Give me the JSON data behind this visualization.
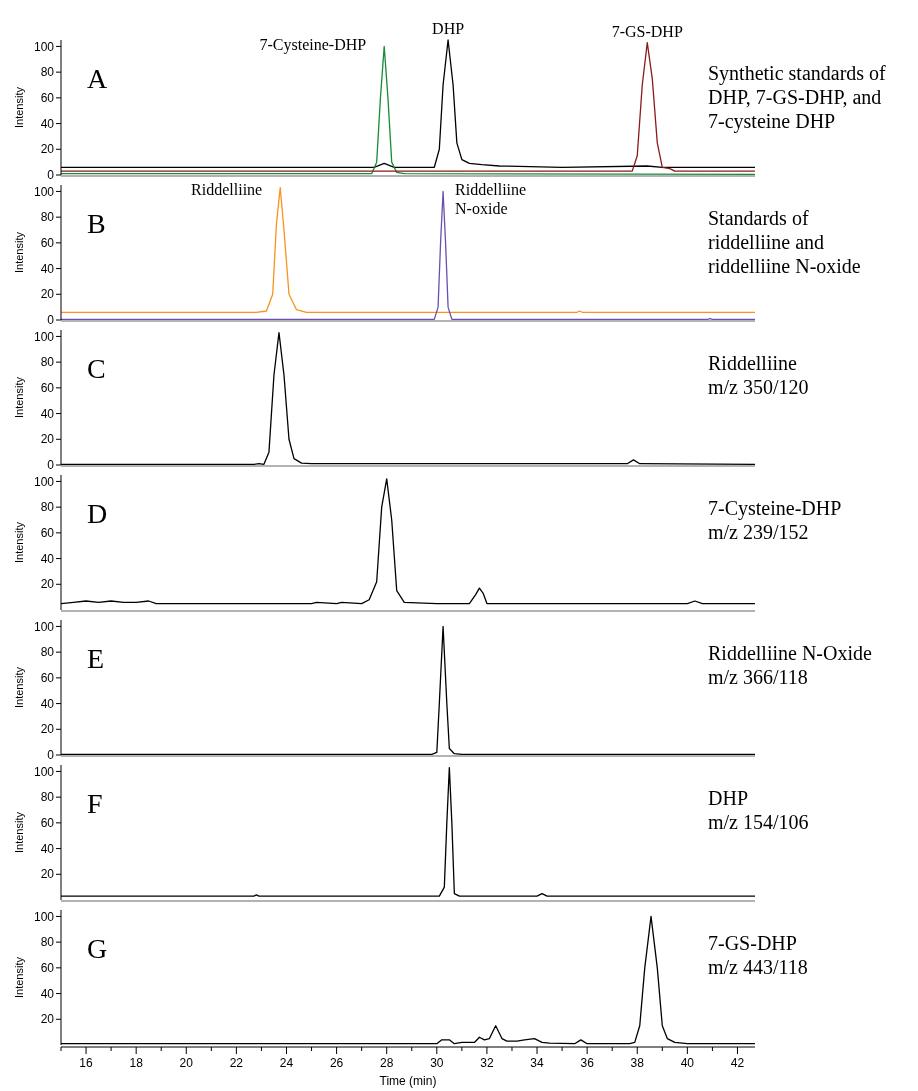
{
  "chart_data": [
    {
      "type": "line",
      "ylabel": "Intensity",
      "xlim": [
        15,
        42.7
      ],
      "ylim": [
        0,
        105
      ],
      "yticks": [
        0,
        20,
        40,
        60,
        80,
        100
      ],
      "tick_labels": "y",
      "series": [
        {
          "color": "#000000",
          "x": [
            15,
            20,
            25,
            27.5,
            27.9,
            28.3,
            29,
            29.9,
            30.1,
            30.25,
            30.45,
            30.65,
            30.8,
            31,
            31.3,
            31.8,
            32.5,
            35,
            38.4,
            39,
            42.7
          ],
          "values": [
            6,
            6,
            6,
            6,
            9,
            6,
            6,
            6,
            20,
            70,
            105,
            70,
            25,
            12,
            9,
            8,
            7,
            6,
            7,
            6,
            6
          ]
        },
        {
          "color": "#1a8a3a",
          "x": [
            15,
            27.4,
            27.6,
            27.75,
            27.9,
            28.05,
            28.2,
            28.4,
            28.7,
            42.7
          ],
          "values": [
            1,
            1,
            10,
            60,
            100,
            60,
            10,
            2,
            1,
            0.5
          ]
        },
        {
          "color": "#8b1a1a",
          "x": [
            15,
            37.8,
            38.0,
            38.2,
            38.4,
            38.6,
            38.8,
            39.0,
            39.3,
            39.5,
            42.7
          ],
          "values": [
            3,
            3,
            15,
            70,
            103,
            75,
            25,
            6,
            5,
            3,
            3
          ]
        }
      ],
      "annotations": [
        "A",
        "Synthetic standards of\nDHP, 7-GS-DHP, and\n7-cysteine DHP",
        {
          "text": "7-Cysteine-DHP",
          "x": 27.9,
          "y": 100
        },
        {
          "text": "DHP",
          "x": 30.45,
          "y": 105
        },
        {
          "text": "7-GS-DHP",
          "x": 38.4,
          "y": 103
        }
      ]
    },
    {
      "type": "line",
      "ylabel": "Intensity",
      "xlim": [
        15,
        42.7
      ],
      "ylim": [
        0,
        105
      ],
      "yticks": [
        0,
        20,
        40,
        60,
        80,
        100
      ],
      "tick_labels": "y",
      "series": [
        {
          "color": "#f7941d",
          "x": [
            15,
            22.8,
            23.2,
            23.45,
            23.6,
            23.75,
            23.9,
            24.1,
            24.4,
            24.8,
            35.6,
            35.7,
            35.8,
            42.7
          ],
          "values": [
            6,
            6,
            7,
            20,
            75,
            103,
            70,
            20,
            8,
            6,
            6,
            7,
            6,
            6
          ]
        },
        {
          "color": "#6a4fb0",
          "x": [
            15,
            29.9,
            30.05,
            30.15,
            30.25,
            30.35,
            30.45,
            30.6,
            40.8,
            40.9,
            41,
            42.7
          ],
          "values": [
            0.5,
            0.5,
            10,
            60,
            100,
            60,
            10,
            0.5,
            0.5,
            1,
            0.5,
            0.5
          ]
        }
      ],
      "annotations": [
        "B",
        "Standards of\nriddelliine and\nriddelliine N-oxide",
        {
          "text": "Riddelliine",
          "x": 23.75,
          "y": 100
        },
        {
          "text": "Riddelliine\nN-oxide",
          "x": 30.25,
          "y": 100
        }
      ]
    },
    {
      "type": "line",
      "ylabel": "Intensity",
      "xlim": [
        15,
        42.7
      ],
      "ylim": [
        0,
        105
      ],
      "yticks": [
        0,
        20,
        40,
        60,
        80,
        100
      ],
      "tick_labels": "y",
      "series": [
        {
          "color": "#000000",
          "x": [
            15,
            22.7,
            22.9,
            23.1,
            23.3,
            23.5,
            23.7,
            23.9,
            24.1,
            24.3,
            24.6,
            25,
            37.6,
            37.85,
            38.1,
            42.7
          ],
          "values": [
            0.5,
            0.5,
            1,
            0.5,
            10,
            70,
            103,
            70,
            20,
            5,
            1.5,
            1,
            1,
            4,
            1,
            0.5
          ]
        }
      ],
      "annotations": [
        "C",
        "Riddelliine\nm/z 350/120"
      ]
    },
    {
      "type": "line",
      "ylabel": "Intensity",
      "xlim": [
        15,
        42.7
      ],
      "ylim": [
        0,
        105
      ],
      "yticks": [
        20,
        40,
        60,
        80,
        100
      ],
      "tick_labels": "y",
      "series": [
        {
          "color": "#000000",
          "x": [
            15,
            15.5,
            16,
            16.5,
            17,
            17.5,
            18,
            18.5,
            18.8,
            19.5,
            22,
            25,
            25.2,
            26,
            26.2,
            27,
            27.3,
            27.6,
            27.8,
            28.0,
            28.2,
            28.4,
            28.7,
            30,
            31.3,
            31.55,
            31.7,
            31.85,
            32,
            33,
            36,
            38,
            40,
            40.3,
            40.6,
            42.7
          ],
          "values": [
            5,
            6,
            7,
            6,
            7,
            6,
            6,
            7,
            5,
            5,
            5,
            5,
            6,
            5,
            6,
            5,
            8,
            22,
            80,
            102,
            70,
            15,
            6,
            5,
            5,
            12,
            17,
            13,
            5,
            5,
            5,
            5,
            5,
            7,
            5,
            5
          ]
        }
      ],
      "annotations": [
        "D",
        "7-Cysteine-DHP\nm/z 239/152"
      ]
    },
    {
      "type": "line",
      "ylabel": "Intensity",
      "xlim": [
        15,
        42.7
      ],
      "ylim": [
        0,
        105
      ],
      "yticks": [
        0,
        20,
        40,
        60,
        80,
        100
      ],
      "tick_labels": "y",
      "series": [
        {
          "color": "#000000",
          "x": [
            15,
            29.8,
            30.0,
            30.1,
            30.25,
            30.4,
            30.5,
            30.7,
            31,
            42.7
          ],
          "values": [
            0.5,
            0.5,
            2,
            40,
            100,
            40,
            5,
            1,
            0.5,
            0.5
          ]
        }
      ],
      "annotations": [
        "E",
        "Riddelliine N-Oxide\nm/z 366/118"
      ]
    },
    {
      "type": "line",
      "ylabel": "Intensity",
      "xlim": [
        15,
        42.7
      ],
      "ylim": [
        0,
        105
      ],
      "yticks": [
        20,
        40,
        60,
        80,
        100
      ],
      "tick_labels": "y",
      "series": [
        {
          "color": "#000000",
          "x": [
            15,
            22.7,
            22.8,
            22.9,
            30.1,
            30.3,
            30.4,
            30.5,
            30.6,
            30.7,
            30.9,
            34.0,
            34.2,
            34.4,
            42.7
          ],
          "values": [
            3,
            3,
            4,
            3,
            3,
            10,
            60,
            103,
            60,
            5,
            3,
            3,
            5,
            3,
            3
          ]
        }
      ],
      "annotations": [
        "F",
        "DHP\nm/z 154/106"
      ]
    },
    {
      "type": "line",
      "ylabel": "Intensity",
      "xlabel": "Time (min)",
      "xlim": [
        15,
        42.7
      ],
      "ylim": [
        0,
        105
      ],
      "yticks": [
        20,
        40,
        60,
        80,
        100
      ],
      "xticks": [
        {
          "value": 15,
          "label": null
        },
        16,
        {
          "value": 17,
          "label": null
        },
        18,
        {
          "value": 19,
          "label": null
        },
        20,
        {
          "value": 21,
          "label": null
        },
        22,
        {
          "value": 23,
          "label": null
        },
        24,
        {
          "value": 25,
          "label": null
        },
        26,
        {
          "value": 27,
          "label": null
        },
        28,
        {
          "value": 29,
          "label": null
        },
        30,
        {
          "value": 31,
          "label": null
        },
        32,
        {
          "value": 33,
          "label": null
        },
        34,
        {
          "value": 35,
          "label": null
        },
        36,
        {
          "value": 37,
          "label": null
        },
        38,
        {
          "value": 39,
          "label": null
        },
        40,
        {
          "value": 41,
          "label": null
        },
        42
      ],
      "series": [
        {
          "color": "#000000",
          "x": [
            15,
            30,
            30.2,
            30.5,
            30.7,
            31,
            31.5,
            31.7,
            31.9,
            32.1,
            32.35,
            32.6,
            32.8,
            33.2,
            33.5,
            33.9,
            34.2,
            34.5,
            35.5,
            35.75,
            36,
            37.7,
            37.9,
            38.1,
            38.3,
            38.55,
            38.8,
            39,
            39.2,
            39.5,
            40,
            42.7
          ],
          "values": [
            1,
            1,
            4,
            4,
            1,
            2,
            2,
            6,
            4,
            5,
            15,
            5,
            3,
            3,
            4,
            5,
            2,
            1.5,
            1,
            4,
            1,
            1,
            2,
            15,
            60,
            100,
            60,
            15,
            5,
            2,
            1,
            1
          ]
        }
      ],
      "annotations": [
        "G",
        "7-GS-DHP\nm/z 443/118"
      ]
    }
  ]
}
